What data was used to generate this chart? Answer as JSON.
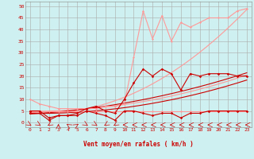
{
  "background_color": "#cff0f0",
  "grid_color": "#aaaaaa",
  "xlabel": "Vent moyen/en rafales ( km/h )",
  "xlabel_color": "#cc0000",
  "xlabel_fontsize": 5.5,
  "ylabel_ticks": [
    0,
    5,
    10,
    15,
    20,
    25,
    30,
    35,
    40,
    45,
    50
  ],
  "xticks": [
    0,
    1,
    2,
    3,
    4,
    5,
    6,
    7,
    8,
    9,
    10,
    11,
    12,
    13,
    14,
    15,
    16,
    17,
    18,
    19,
    20,
    21,
    22,
    23
  ],
  "xlim": [
    -0.5,
    23.5
  ],
  "ylim": [
    -2,
    52
  ],
  "line_pink_upper": {
    "x": [
      0,
      1,
      2,
      3,
      4,
      5,
      6,
      7,
      8,
      9,
      10,
      11,
      12,
      13,
      14,
      15,
      16,
      17,
      18,
      19,
      20,
      21,
      22,
      23
    ],
    "y": [
      10,
      8,
      7,
      6,
      6,
      6,
      6,
      6,
      7,
      7,
      8,
      28,
      48,
      36,
      46,
      35,
      43,
      41,
      43,
      45,
      45,
      45,
      48,
      49
    ],
    "color": "#ff9999",
    "linewidth": 0.8,
    "marker": "D",
    "markersize": 1.5
  },
  "line_pink_lower": {
    "x": [
      0,
      1,
      2,
      3,
      4,
      5,
      6,
      7,
      8,
      9,
      10,
      11,
      12,
      13,
      14,
      15,
      16,
      17,
      18,
      19,
      20,
      21,
      22,
      23
    ],
    "y": [
      5,
      5,
      5,
      5,
      5,
      5,
      5,
      5,
      5,
      5,
      5,
      5,
      5,
      5,
      5,
      5,
      5,
      5,
      5,
      5,
      5,
      5,
      5,
      5
    ],
    "color": "#ff9999",
    "linewidth": 0.8,
    "marker": "D",
    "markersize": 1.5
  },
  "line_dark_upper": {
    "x": [
      0,
      1,
      2,
      3,
      4,
      5,
      6,
      7,
      8,
      9,
      10,
      11,
      12,
      13,
      14,
      15,
      16,
      17,
      18,
      19,
      20,
      21,
      22,
      23
    ],
    "y": [
      5,
      5,
      2,
      3,
      3,
      4,
      6,
      7,
      5,
      4,
      10,
      17,
      23,
      20,
      23,
      21,
      14,
      21,
      20,
      21,
      21,
      21,
      20,
      20
    ],
    "color": "#cc0000",
    "linewidth": 0.8,
    "marker": "D",
    "markersize": 1.8
  },
  "line_dark_lower": {
    "x": [
      0,
      1,
      2,
      3,
      4,
      5,
      6,
      7,
      8,
      9,
      10,
      11,
      12,
      13,
      14,
      15,
      16,
      17,
      18,
      19,
      20,
      21,
      22,
      23
    ],
    "y": [
      4,
      4,
      1,
      3,
      3,
      3,
      5,
      4,
      3,
      1,
      5,
      5,
      4,
      3,
      4,
      4,
      2,
      4,
      4,
      5,
      5,
      5,
      5,
      5
    ],
    "color": "#cc0000",
    "linewidth": 0.8,
    "marker": "D",
    "markersize": 1.8
  },
  "trend_pink_high_x": [
    0,
    2,
    5,
    8,
    10,
    13,
    16,
    19,
    22,
    23
  ],
  "trend_pink_high_y": [
    5,
    5,
    5,
    6,
    8,
    18,
    27,
    35,
    44,
    47
  ],
  "trend_pink_low_x": [
    0,
    5,
    10,
    15,
    20,
    23
  ],
  "trend_pink_low_y": [
    5,
    5.5,
    7,
    12,
    17,
    20
  ],
  "trend_dark_high_x": [
    0,
    5,
    10,
    15,
    20,
    23
  ],
  "trend_dark_high_y": [
    4,
    5,
    8,
    13,
    18,
    21
  ],
  "trend_dark_low_x": [
    0,
    5,
    10,
    15,
    20,
    23
  ],
  "trend_dark_low_y": [
    4,
    4.5,
    6,
    10,
    15,
    18
  ],
  "tick_label_color": "#cc0000",
  "tick_label_fontsize": 4.5,
  "arrow_color": "#cc0000",
  "arrow_dirs": [
    45,
    45,
    315,
    180,
    225,
    135,
    45,
    45,
    315,
    315,
    270,
    270,
    270,
    270,
    270,
    270,
    270,
    270,
    270,
    270,
    270,
    270,
    270,
    270
  ]
}
